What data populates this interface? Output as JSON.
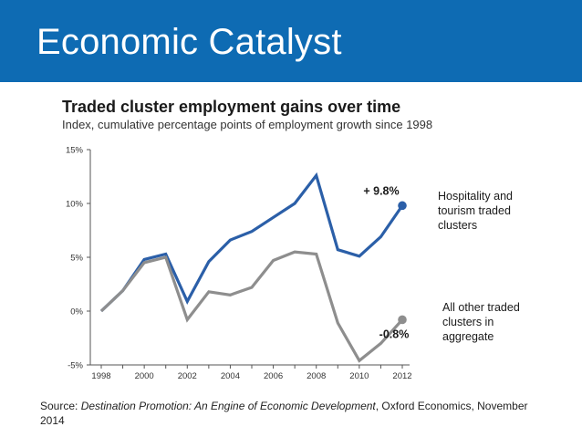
{
  "header": {
    "title": "Economic Catalyst"
  },
  "source": {
    "prefix": "Source: ",
    "title_italic": "Destination Promotion: An Engine of Economic Development",
    "suffix": ", Oxford Economics, November 2014"
  },
  "colors": {
    "header_bg": "#0e6bb3",
    "series_hospitality": "#2b5fa8",
    "series_other": "#8e8e8e",
    "axis": "#555555"
  },
  "chart_data": {
    "type": "line",
    "title": "Traded cluster employment gains over time",
    "subtitle": "Index, cumulative percentage points of employment growth since 1998",
    "x": [
      1998,
      1999,
      2000,
      2001,
      2002,
      2003,
      2004,
      2005,
      2006,
      2007,
      2008,
      2009,
      2010,
      2011,
      2012
    ],
    "x_tick_labels": [
      "1998",
      "2000",
      "2002",
      "2004",
      "2006",
      "2008",
      "2010",
      "2012"
    ],
    "y_tick_labels": [
      "15%",
      "10%",
      "5%",
      "0%",
      "-5%"
    ],
    "y_ticks": [
      15,
      10,
      5,
      0,
      -5
    ],
    "ylim": [
      -5,
      15
    ],
    "xlim": [
      1998,
      2012
    ],
    "series": [
      {
        "name": "Hospitality and tourism traded clusters",
        "label_lines": [
          "Hospitality and",
          "tourism traded",
          "clusters"
        ],
        "values": [
          0,
          1.9,
          4.8,
          5.3,
          0.9,
          4.6,
          6.6,
          7.4,
          8.7,
          10.0,
          12.6,
          5.7,
          5.1,
          6.9,
          9.8
        ],
        "end_label": "+ 9.8%"
      },
      {
        "name": "All other traded clusters in aggregate",
        "label_lines": [
          "All other traded",
          "clusters in",
          "aggregate"
        ],
        "values": [
          0,
          1.9,
          4.5,
          5.0,
          -0.8,
          1.8,
          1.5,
          2.2,
          4.7,
          5.5,
          5.3,
          -1.1,
          -4.6,
          -3.0,
          -0.8
        ],
        "end_label": "-0.8%"
      }
    ]
  }
}
